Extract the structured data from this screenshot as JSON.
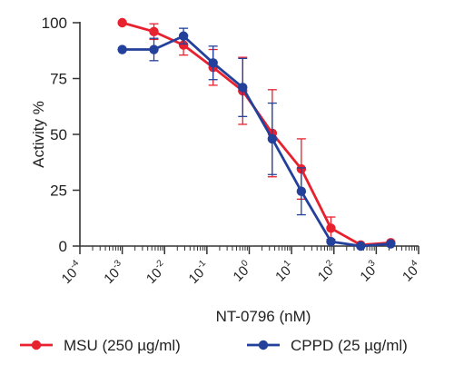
{
  "chart_data": {
    "type": "line",
    "xlabel": "NT-0796 (nM)",
    "ylabel": "Activity %",
    "x_scale": "log",
    "xlim_exponent": [
      -4,
      4
    ],
    "x_tick_base": "10",
    "x_tick_exponents": [
      "-4",
      "-3",
      "-2",
      "-1",
      "0",
      "1",
      "2",
      "3",
      "4"
    ],
    "ylim": [
      0,
      100
    ],
    "y_ticks": [
      "0",
      "25",
      "50",
      "75",
      "100"
    ],
    "grid": false,
    "legend_position": "bottom",
    "series": [
      {
        "name": "MSU (250 µg/ml)",
        "color": "#e8212e",
        "x": [
          0.001,
          0.0056,
          0.028,
          0.14,
          0.7,
          3.5,
          17,
          85,
          430,
          2200
        ],
        "y": [
          100,
          96,
          90,
          80,
          69.5,
          50.5,
          34.5,
          8,
          0.5,
          1.5
        ],
        "err": [
          0,
          3.5,
          4.5,
          8,
          15,
          19.5,
          13.5,
          5,
          0,
          0
        ]
      },
      {
        "name": "CPPD (25 µg/ml)",
        "color": "#23419a",
        "x": [
          0.001,
          0.0056,
          0.028,
          0.14,
          0.7,
          3.5,
          17,
          85,
          430,
          2200
        ],
        "y": [
          88,
          88,
          94,
          82,
          71,
          48,
          24.5,
          2,
          0,
          1
        ],
        "err": [
          0,
          5,
          3.5,
          7.5,
          13,
          16,
          10.5,
          0,
          0,
          0
        ]
      }
    ]
  }
}
